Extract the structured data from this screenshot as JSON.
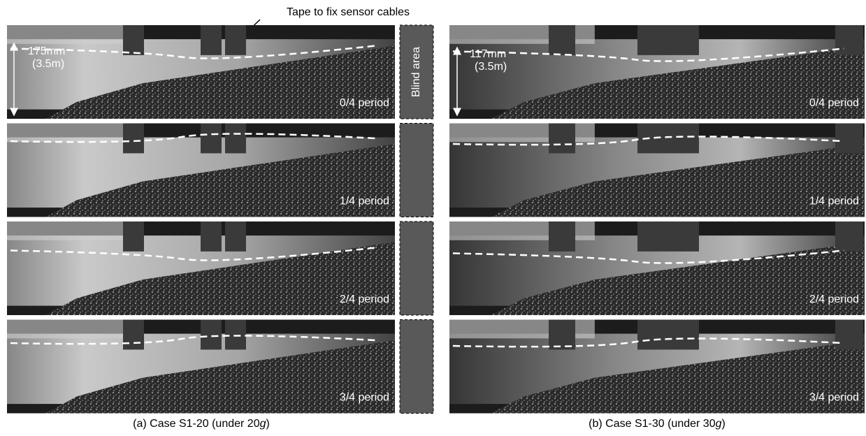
{
  "annotation": "Tape to fix sensor cables",
  "panels": [
    {
      "caption_parts": [
        "(a) Case S1-20 (under 20",
        "g",
        ")"
      ],
      "depth_label": "175mm",
      "scale_label": "(3.5m)",
      "blind_area": "Blind area",
      "frames": [
        "0/4 period",
        "1/4 period",
        "2/4 period",
        "3/4 period"
      ]
    },
    {
      "caption_parts": [
        "(b) Case S1-30 (under 30",
        "g",
        ")"
      ],
      "depth_label": "117mm",
      "scale_label": "(3.5m)",
      "frames": [
        "0/4 period",
        "1/4 period",
        "2/4 period",
        "3/4 period"
      ]
    }
  ]
}
